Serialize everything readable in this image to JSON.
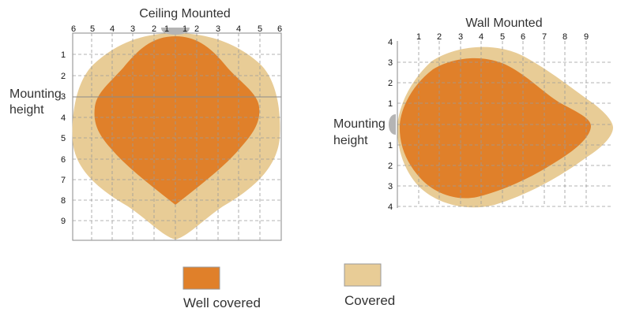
{
  "ceiling": {
    "title": "Ceiling Mounted",
    "top_ticks": [
      "6",
      "5",
      "4",
      "3",
      "2",
      "1",
      "1",
      "2",
      "3",
      "4",
      "5",
      "6"
    ],
    "left_ticks": [
      "1",
      "2",
      "3",
      "4",
      "5",
      "6",
      "7",
      "8",
      "9"
    ],
    "side_label_line1": "Mounting",
    "side_label_line2": "height"
  },
  "wall": {
    "title": "Wall Mounted",
    "top_ticks": [
      "1",
      "2",
      "3",
      "4",
      "5",
      "6",
      "7",
      "8",
      "9"
    ],
    "left_ticks": [
      "4",
      "3",
      "2",
      "1",
      "1",
      "2",
      "3",
      "4"
    ],
    "side_label_line1": "Mounting",
    "side_label_line2": "height"
  },
  "legend": {
    "well_covered": "Well covered",
    "covered": "Covered"
  },
  "colors": {
    "well_covered": "#E0802A",
    "covered": "#E8CC96",
    "sensor": "#B4B4B4"
  }
}
